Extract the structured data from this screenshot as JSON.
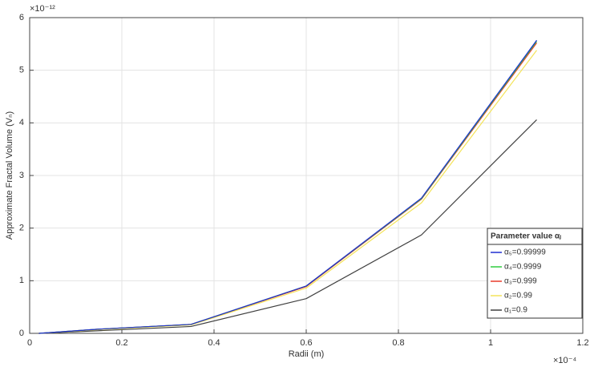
{
  "chart_data": {
    "type": "line",
    "x_label": "Radii (m)",
    "y_label": "Approximate Fractal Volume (Vₙ)",
    "x_multiplier": "×10⁻⁴",
    "y_multiplier": "×10⁻¹²",
    "legend_title": "Parameter value αⱼ",
    "legend": "lower right",
    "grid": true,
    "x": [
      0.02,
      0.15,
      0.35,
      0.6,
      0.85,
      1.1
    ],
    "series": [
      {
        "name": "α₅=0.99999",
        "color": "#1f2fd0",
        "values": [
          0,
          0.08,
          0.17,
          0.9,
          2.57,
          5.57
        ]
      },
      {
        "name": "α₄=0.9999",
        "color": "#2fcc3f",
        "values": [
          0,
          0.08,
          0.17,
          0.9,
          2.56,
          5.55
        ]
      },
      {
        "name": "α₃=0.999",
        "color": "#e83a2a",
        "values": [
          0,
          0.08,
          0.17,
          0.89,
          2.55,
          5.52
        ]
      },
      {
        "name": "α₂=0.99",
        "color": "#f4e45a",
        "values": [
          0,
          0.07,
          0.16,
          0.86,
          2.48,
          5.38
        ]
      },
      {
        "name": "α₁=0.9",
        "color": "#404040",
        "values": [
          0,
          0.05,
          0.13,
          0.66,
          1.87,
          4.06
        ]
      }
    ],
    "xlim": [
      0,
      1.2
    ],
    "xticks": [
      0,
      0.2,
      0.4,
      0.6,
      0.8,
      1,
      1.2
    ],
    "ylim": [
      0,
      6
    ],
    "yticks": [
      0,
      1,
      2,
      3,
      4,
      5,
      6
    ]
  }
}
